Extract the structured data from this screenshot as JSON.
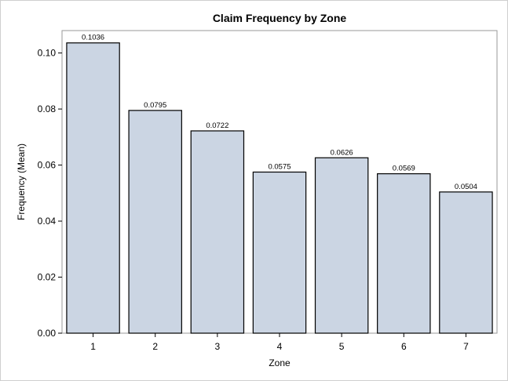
{
  "chart_data": {
    "type": "bar",
    "title": "Claim Frequency by Zone",
    "xlabel": "Zone",
    "ylabel": "Frequency (Mean)",
    "categories": [
      "1",
      "2",
      "3",
      "4",
      "5",
      "6",
      "7"
    ],
    "values": [
      0.1036,
      0.0795,
      0.0722,
      0.0575,
      0.0626,
      0.0569,
      0.0504
    ],
    "data_labels": [
      "0.1036",
      "0.0795",
      "0.0722",
      "0.0575",
      "0.0626",
      "0.0569",
      "0.0504"
    ],
    "ylim": [
      0,
      0.108
    ],
    "yticks": [
      0.0,
      0.02,
      0.04,
      0.06,
      0.08,
      0.1
    ],
    "ytick_labels": [
      "0.00",
      "0.02",
      "0.04",
      "0.06",
      "0.08",
      "0.10"
    ],
    "grid": false,
    "legend": "none",
    "bar_color": "#cbd5e3",
    "bar_edge_color": "#000000"
  }
}
